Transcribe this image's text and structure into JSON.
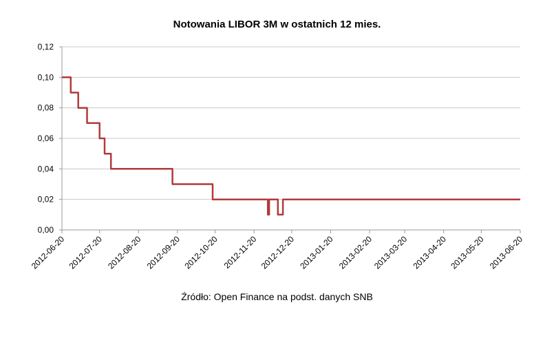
{
  "chart_data": {
    "type": "line",
    "title": "Notowania LIBOR 3M w ostatnich  12 mies.",
    "source": "Źródło: Open Finance na podst. danych SNB",
    "ylim": [
      0,
      0.12
    ],
    "y_ticks": [
      "0,00",
      "0,02",
      "0,04",
      "0,06",
      "0,08",
      "0,10",
      "0,12"
    ],
    "x_ticks": [
      "2012-06-20",
      "2012-07-20",
      "2012-08-20",
      "2012-09-20",
      "2012-10-20",
      "2012-11-20",
      "2012-12-20",
      "2013-01-20",
      "2013-02-20",
      "2013-03-20",
      "2013-04-20",
      "2013-05-20",
      "2013-06-20"
    ],
    "grid": "horizontal",
    "line_color": "#b03a3a",
    "series": [
      {
        "x": [
          "2012-06-20",
          "2012-06-27",
          "2012-06-27",
          "2012-07-03",
          "2012-07-03",
          "2012-07-10",
          "2012-07-10",
          "2012-07-20",
          "2012-07-20",
          "2012-07-24",
          "2012-07-24",
          "2012-07-29",
          "2012-07-29",
          "2012-09-16",
          "2012-09-16",
          "2012-10-18",
          "2012-10-18",
          "2012-12-01",
          "2012-12-01",
          "2012-12-02",
          "2012-12-02",
          "2012-12-09",
          "2012-12-09",
          "2012-12-13",
          "2012-12-13",
          "2013-01-14",
          "2013-01-14",
          "2013-06-20"
        ],
        "values": [
          0.1,
          0.1,
          0.09,
          0.09,
          0.08,
          0.08,
          0.07,
          0.07,
          0.06,
          0.06,
          0.05,
          0.05,
          0.04,
          0.04,
          0.03,
          0.03,
          0.02,
          0.02,
          0.01,
          0.01,
          0.02,
          0.02,
          0.01,
          0.01,
          0.02,
          0.02,
          0.02,
          0.02
        ]
      }
    ]
  }
}
